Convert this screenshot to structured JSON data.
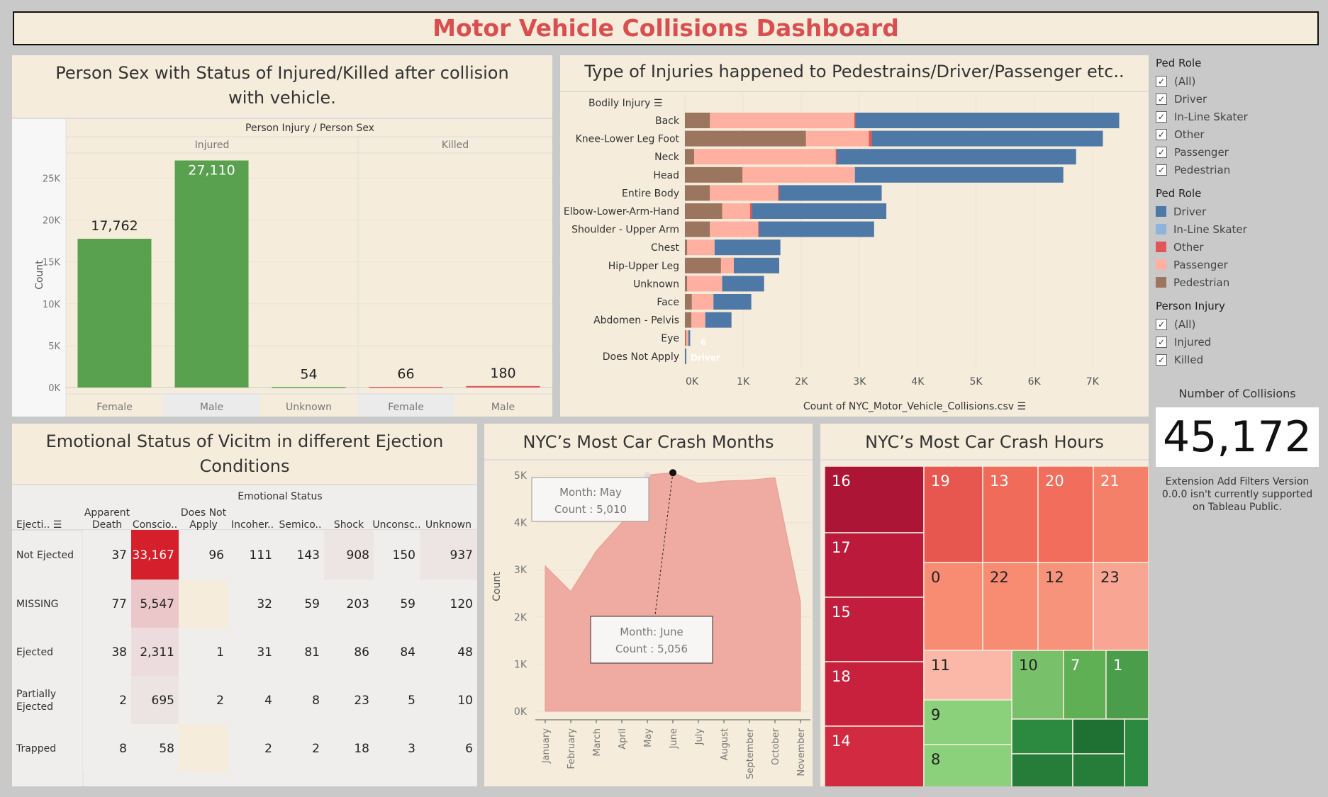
{
  "dashboard_title": "Motor Vehicle Collisions Dashboard",
  "colors": {
    "driver": "#4e79a7",
    "inline": "#8fb3dc",
    "other": "#e15759",
    "passenger": "#ffb0a0",
    "pedestrian": "#9c755f",
    "green": "#59a14f"
  },
  "sex_panel": {
    "title": "Person Sex with Status of Injured/Killed after collision with vehicle.",
    "header": "Person Injury / Person Sex",
    "ylabel": "Count",
    "groups": [
      "Injured",
      "Killed"
    ],
    "yticks": [
      "25K",
      "20K",
      "15K",
      "10K",
      "5K",
      "0K"
    ]
  },
  "injury_panel": {
    "title": "Type of Injuries happened to Pedestrains/Driver/Passenger etc..",
    "row_header": "Bodily Injury",
    "xlabel": "Count of NYC_Motor_Vehicle_Collisions.csv",
    "xticks": [
      "0K",
      "1K",
      "2K",
      "3K",
      "4K",
      "5K",
      "6K",
      "7K"
    ],
    "tooltip_value": "6",
    "tooltip_role": "Driver"
  },
  "emotion_panel": {
    "title": "Emotional Status of Vicitm in different Ejection Conditions",
    "header": "Emotional Status",
    "row_header": "Ejecti..",
    "columns": [
      [
        "Apparent",
        "Death"
      ],
      [
        "",
        "Conscio.."
      ],
      [
        "Does Not",
        "Apply"
      ],
      [
        "",
        "Incoher.."
      ],
      [
        "",
        "Semico.."
      ],
      [
        "",
        "Shock"
      ],
      [
        "",
        "Unconsc.."
      ],
      [
        "",
        "Unknown"
      ]
    ],
    "rows": [
      {
        "label": [
          "Not Ejected"
        ],
        "cells": [
          "37",
          "33,167",
          "96",
          "111",
          "143",
          "908",
          "150",
          "937"
        ]
      },
      {
        "label": [
          "MISSING"
        ],
        "cells": [
          "77",
          "5,547",
          "",
          "32",
          "59",
          "203",
          "59",
          "120"
        ]
      },
      {
        "label": [
          "Ejected"
        ],
        "cells": [
          "38",
          "2,311",
          "1",
          "31",
          "81",
          "86",
          "84",
          "48"
        ]
      },
      {
        "label": [
          "Partially",
          "Ejected"
        ],
        "cells": [
          "2",
          "695",
          "2",
          "4",
          "8",
          "23",
          "5",
          "10"
        ]
      },
      {
        "label": [
          "Trapped"
        ],
        "cells": [
          "8",
          "58",
          "",
          "2",
          "2",
          "18",
          "3",
          "6"
        ]
      }
    ]
  },
  "months_panel": {
    "title": "NYC’s Most Car Crash Months",
    "ylabel": "Count",
    "yticks": [
      "5K",
      "4K",
      "3K",
      "2K",
      "1K",
      "0K"
    ],
    "tooltip1": {
      "l1": "Month: May",
      "l2": "Count : 5,010"
    },
    "tooltip2": {
      "l1": "Month: June",
      "l2": "Count : 5,056"
    }
  },
  "hours_panel": {
    "title": "NYC’s Most Car Crash Hours",
    "cells": [
      {
        "label": "16",
        "color": "#ad1536"
      },
      {
        "label": "17",
        "color": "#bb1a3a"
      },
      {
        "label": "15",
        "color": "#c21d3c"
      },
      {
        "label": "18",
        "color": "#c8213e"
      },
      {
        "label": "14",
        "color": "#d22a40"
      },
      {
        "label": "19",
        "color": "#e85650"
      },
      {
        "label": "13",
        "color": "#f06b5a"
      },
      {
        "label": "20",
        "color": "#f26d5c"
      },
      {
        "label": "21",
        "color": "#f5806a"
      },
      {
        "label": "0",
        "color": "#f78c72"
      },
      {
        "label": "22",
        "color": "#f78c72"
      },
      {
        "label": "12",
        "color": "#f7937a"
      },
      {
        "label": "23",
        "color": "#f9a593"
      },
      {
        "label": "11",
        "color": "#fbb8a8"
      },
      {
        "label": "10",
        "color": "#79c06a"
      },
      {
        "label": "7",
        "color": "#5faf55"
      },
      {
        "label": "1",
        "color": "#4a9e4b"
      },
      {
        "label": "9",
        "color": "#8bd07a"
      },
      {
        "label": "8",
        "color": "#8bd07a"
      },
      {
        "label": "",
        "color": "#2b8a3f"
      },
      {
        "label": "",
        "color": "#257d39"
      },
      {
        "label": "",
        "color": "#1e7033"
      },
      {
        "label": "",
        "color": "#2b8a3f"
      },
      {
        "label": "",
        "color": "#257d39"
      }
    ]
  },
  "sidebar": {
    "filter1": {
      "title": "Ped Role",
      "items": [
        "(All)",
        "Driver",
        "In-Line Skater",
        "Other",
        "Passenger",
        "Pedestrian"
      ]
    },
    "legend": {
      "title": "Ped Role",
      "items": [
        {
          "label": "Driver",
          "color": "#4e79a7"
        },
        {
          "label": "In-Line Skater",
          "color": "#8fb3dc"
        },
        {
          "label": "Other",
          "color": "#e15759"
        },
        {
          "label": "Passenger",
          "color": "#ffb0a0"
        },
        {
          "label": "Pedestrian",
          "color": "#9c755f"
        }
      ]
    },
    "filter2": {
      "title": "Person Injury",
      "items": [
        "(All)",
        "Injured",
        "Killed"
      ]
    },
    "kpi_title": "Number of Collisions",
    "kpi_value": "45,172",
    "note": "Extension Add Filters Version 0.0.0 isn't currently supported on Tableau Public."
  },
  "chart_data": [
    {
      "type": "bar",
      "title": "Person Sex with Status of Injured/Killed after collision with vehicle.",
      "ylabel": "Count",
      "ylim": [
        0,
        28000
      ],
      "categories": [
        "Female",
        "Male",
        "Unknown",
        "Female",
        "Male"
      ],
      "groups": [
        "Injured",
        "Injured",
        "Injured",
        "Killed",
        "Killed"
      ],
      "values": [
        17762,
        27110,
        54,
        66,
        180
      ],
      "data_labels": [
        "17,762",
        "27,110",
        "54",
        "66",
        "180"
      ]
    },
    {
      "type": "bar",
      "orientation": "horizontal-stacked",
      "title": "Type of Injuries happened to Pedestrains/Driver/Passenger etc..",
      "xlabel": "Count of NYC_Motor_Vehicle_Collisions.csv",
      "xlim": [
        0,
        7600
      ],
      "categories": [
        "Back",
        "Knee-Lower Leg Foot",
        "Neck",
        "Head",
        "Entire Body",
        "Elbow-Lower-Arm-Hand",
        "Shoulder - Upper Arm",
        "Chest",
        "Hip-Upper Leg",
        "Unknown",
        "Face",
        "Abdomen - Pelvis",
        "Eye",
        "Does Not Apply"
      ],
      "series": [
        {
          "name": "Pedestrian",
          "values": [
            430,
            2080,
            160,
            990,
            430,
            640,
            430,
            40,
            620,
            40,
            120,
            110,
            20,
            0
          ]
        },
        {
          "name": "Passenger",
          "values": [
            2480,
            1080,
            2430,
            1930,
            1170,
            480,
            830,
            470,
            220,
            600,
            370,
            240,
            40,
            0
          ]
        },
        {
          "name": "Other",
          "values": [
            20,
            50,
            20,
            0,
            20,
            30,
            10,
            0,
            0,
            0,
            0,
            0,
            0,
            0
          ]
        },
        {
          "name": "In-Line Skater",
          "values": [
            0,
            0,
            0,
            0,
            0,
            0,
            0,
            0,
            0,
            0,
            0,
            0,
            0,
            0
          ]
        },
        {
          "name": "Driver",
          "values": [
            4530,
            3970,
            4110,
            3580,
            1760,
            2310,
            1980,
            1130,
            780,
            720,
            650,
            450,
            30,
            6
          ]
        }
      ]
    },
    {
      "type": "table",
      "title": "Emotional Status of Vicitm in different Ejection Conditions",
      "columns": [
        "Apparent Death",
        "Conscio..",
        "Does Not Apply",
        "Incoher..",
        "Semico..",
        "Shock",
        "Unconsc..",
        "Unknown"
      ],
      "rows": [
        "Not Ejected",
        "MISSING",
        "Ejected",
        "Partially Ejected",
        "Trapped"
      ]
    },
    {
      "type": "area",
      "title": "NYC’s Most Car Crash Months",
      "ylabel": "Count",
      "ylim": [
        0,
        5000
      ],
      "categories": [
        "January",
        "February",
        "March",
        "April",
        "May",
        "June",
        "July",
        "August",
        "September",
        "October",
        "November"
      ],
      "values": [
        3080,
        2540,
        3400,
        4000,
        5010,
        5056,
        4830,
        4880,
        4900,
        4950,
        2320
      ]
    },
    {
      "type": "heatmap",
      "title": "NYC’s Most Car Crash Hours",
      "categories": [
        "16",
        "17",
        "15",
        "18",
        "14",
        "19",
        "13",
        "20",
        "21",
        "0",
        "22",
        "12",
        "23",
        "11",
        "10",
        "7",
        "1",
        "9",
        "8"
      ]
    }
  ]
}
